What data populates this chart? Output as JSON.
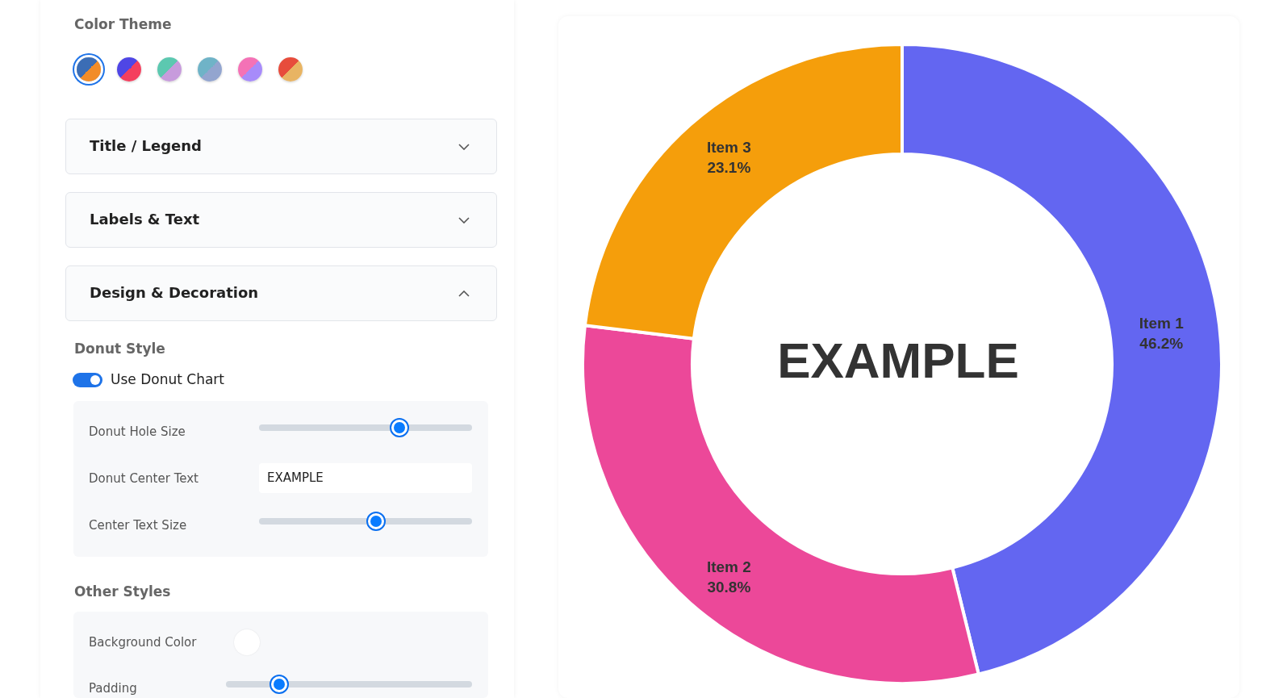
{
  "chart_data": [
    {
      "type": "other",
      "annotations": [
        "Color Theme",
        "Title / Legend",
        "Labels & Text",
        "Design & Decoration",
        "Donut Style",
        "Use Donut Chart",
        "Donut Hole Size",
        "Donut Center Text",
        "EXAMPLE",
        "Center Text Size",
        "Other Styles",
        "Background Color",
        "Padding"
      ]
    },
    {
      "type": "donut",
      "categories": [
        "Item 1",
        "Item 2",
        "Item 3"
      ],
      "values": [
        46.2,
        30.8,
        23.1
      ],
      "colors": [
        "#6366f1",
        "#ec4899",
        "#f59e0b"
      ],
      "value_labels": [
        "46.2%",
        "30.8%",
        "23.1%"
      ],
      "annotations": [
        "EXAMPLE"
      ]
    }
  ]
}
